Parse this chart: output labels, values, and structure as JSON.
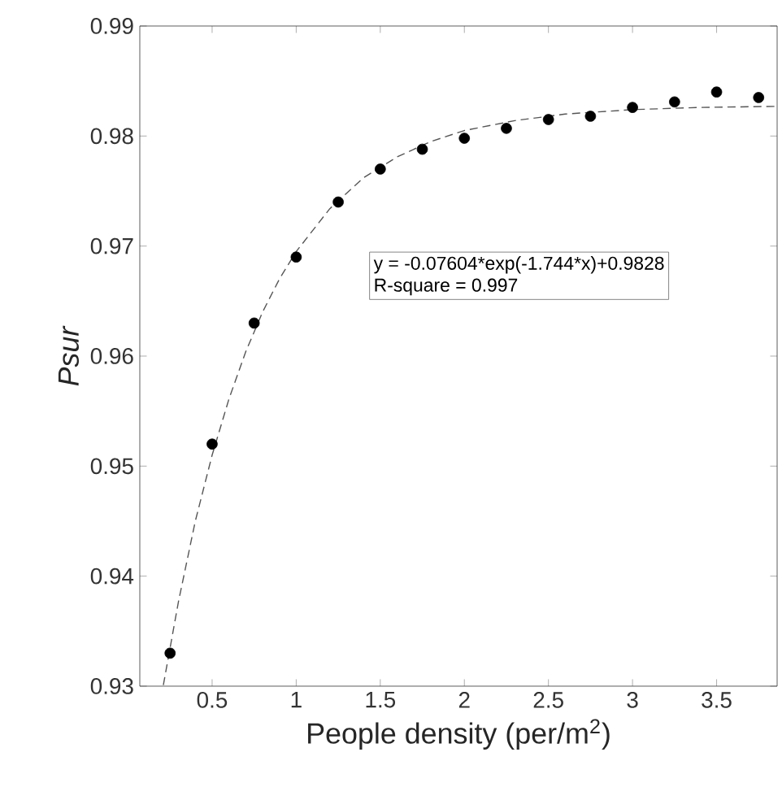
{
  "chart_data": {
    "type": "scatter",
    "xlabel": "People density (per/m$^{2}$)",
    "ylabel": "*Psur*",
    "xlim": [
      0.07,
      3.86
    ],
    "ylim": [
      0.93,
      0.99
    ],
    "xticks": [
      0.5,
      1,
      1.5,
      2,
      2.5,
      3,
      3.5
    ],
    "yticks": [
      0.93,
      0.94,
      0.95,
      0.96,
      0.97,
      0.98,
      0.99
    ],
    "grid": false,
    "annotations": [
      "y = -0.07604*exp(-1.744*x)+0.9828",
      "R-square = 0.997"
    ],
    "series": [
      {
        "type": "scatter",
        "color": "#000000",
        "marker": "circle",
        "x": [
          0.25,
          0.5,
          0.75,
          1,
          1.25,
          1.5,
          1.75,
          2,
          2.25,
          2.5,
          2.75,
          3,
          3.25,
          3.5,
          3.75
        ],
        "values": [
          0.933,
          0.952,
          0.963,
          0.969,
          0.974,
          0.977,
          0.9788,
          0.9798,
          0.9807,
          0.9815,
          0.9818,
          0.9826,
          0.9831,
          0.984,
          0.9835
        ]
      },
      {
        "type": "line",
        "color": "#555555",
        "line_style": "dashed",
        "marker": "none",
        "x": [
          0.21,
          0.3,
          0.4,
          0.5,
          0.6,
          0.7,
          0.8,
          0.9,
          1.0,
          1.2,
          1.4,
          1.6,
          1.8,
          2.0,
          2.3,
          2.6,
          3.0,
          3.4,
          3.86
        ],
        "values": [
          0.9301,
          0.9377,
          0.945,
          0.951,
          0.9561,
          0.9604,
          0.964,
          0.967,
          0.9695,
          0.9734,
          0.9762,
          0.9781,
          0.9795,
          0.9805,
          0.9814,
          0.982,
          0.9824,
          0.9826,
          0.9827
        ]
      }
    ]
  }
}
